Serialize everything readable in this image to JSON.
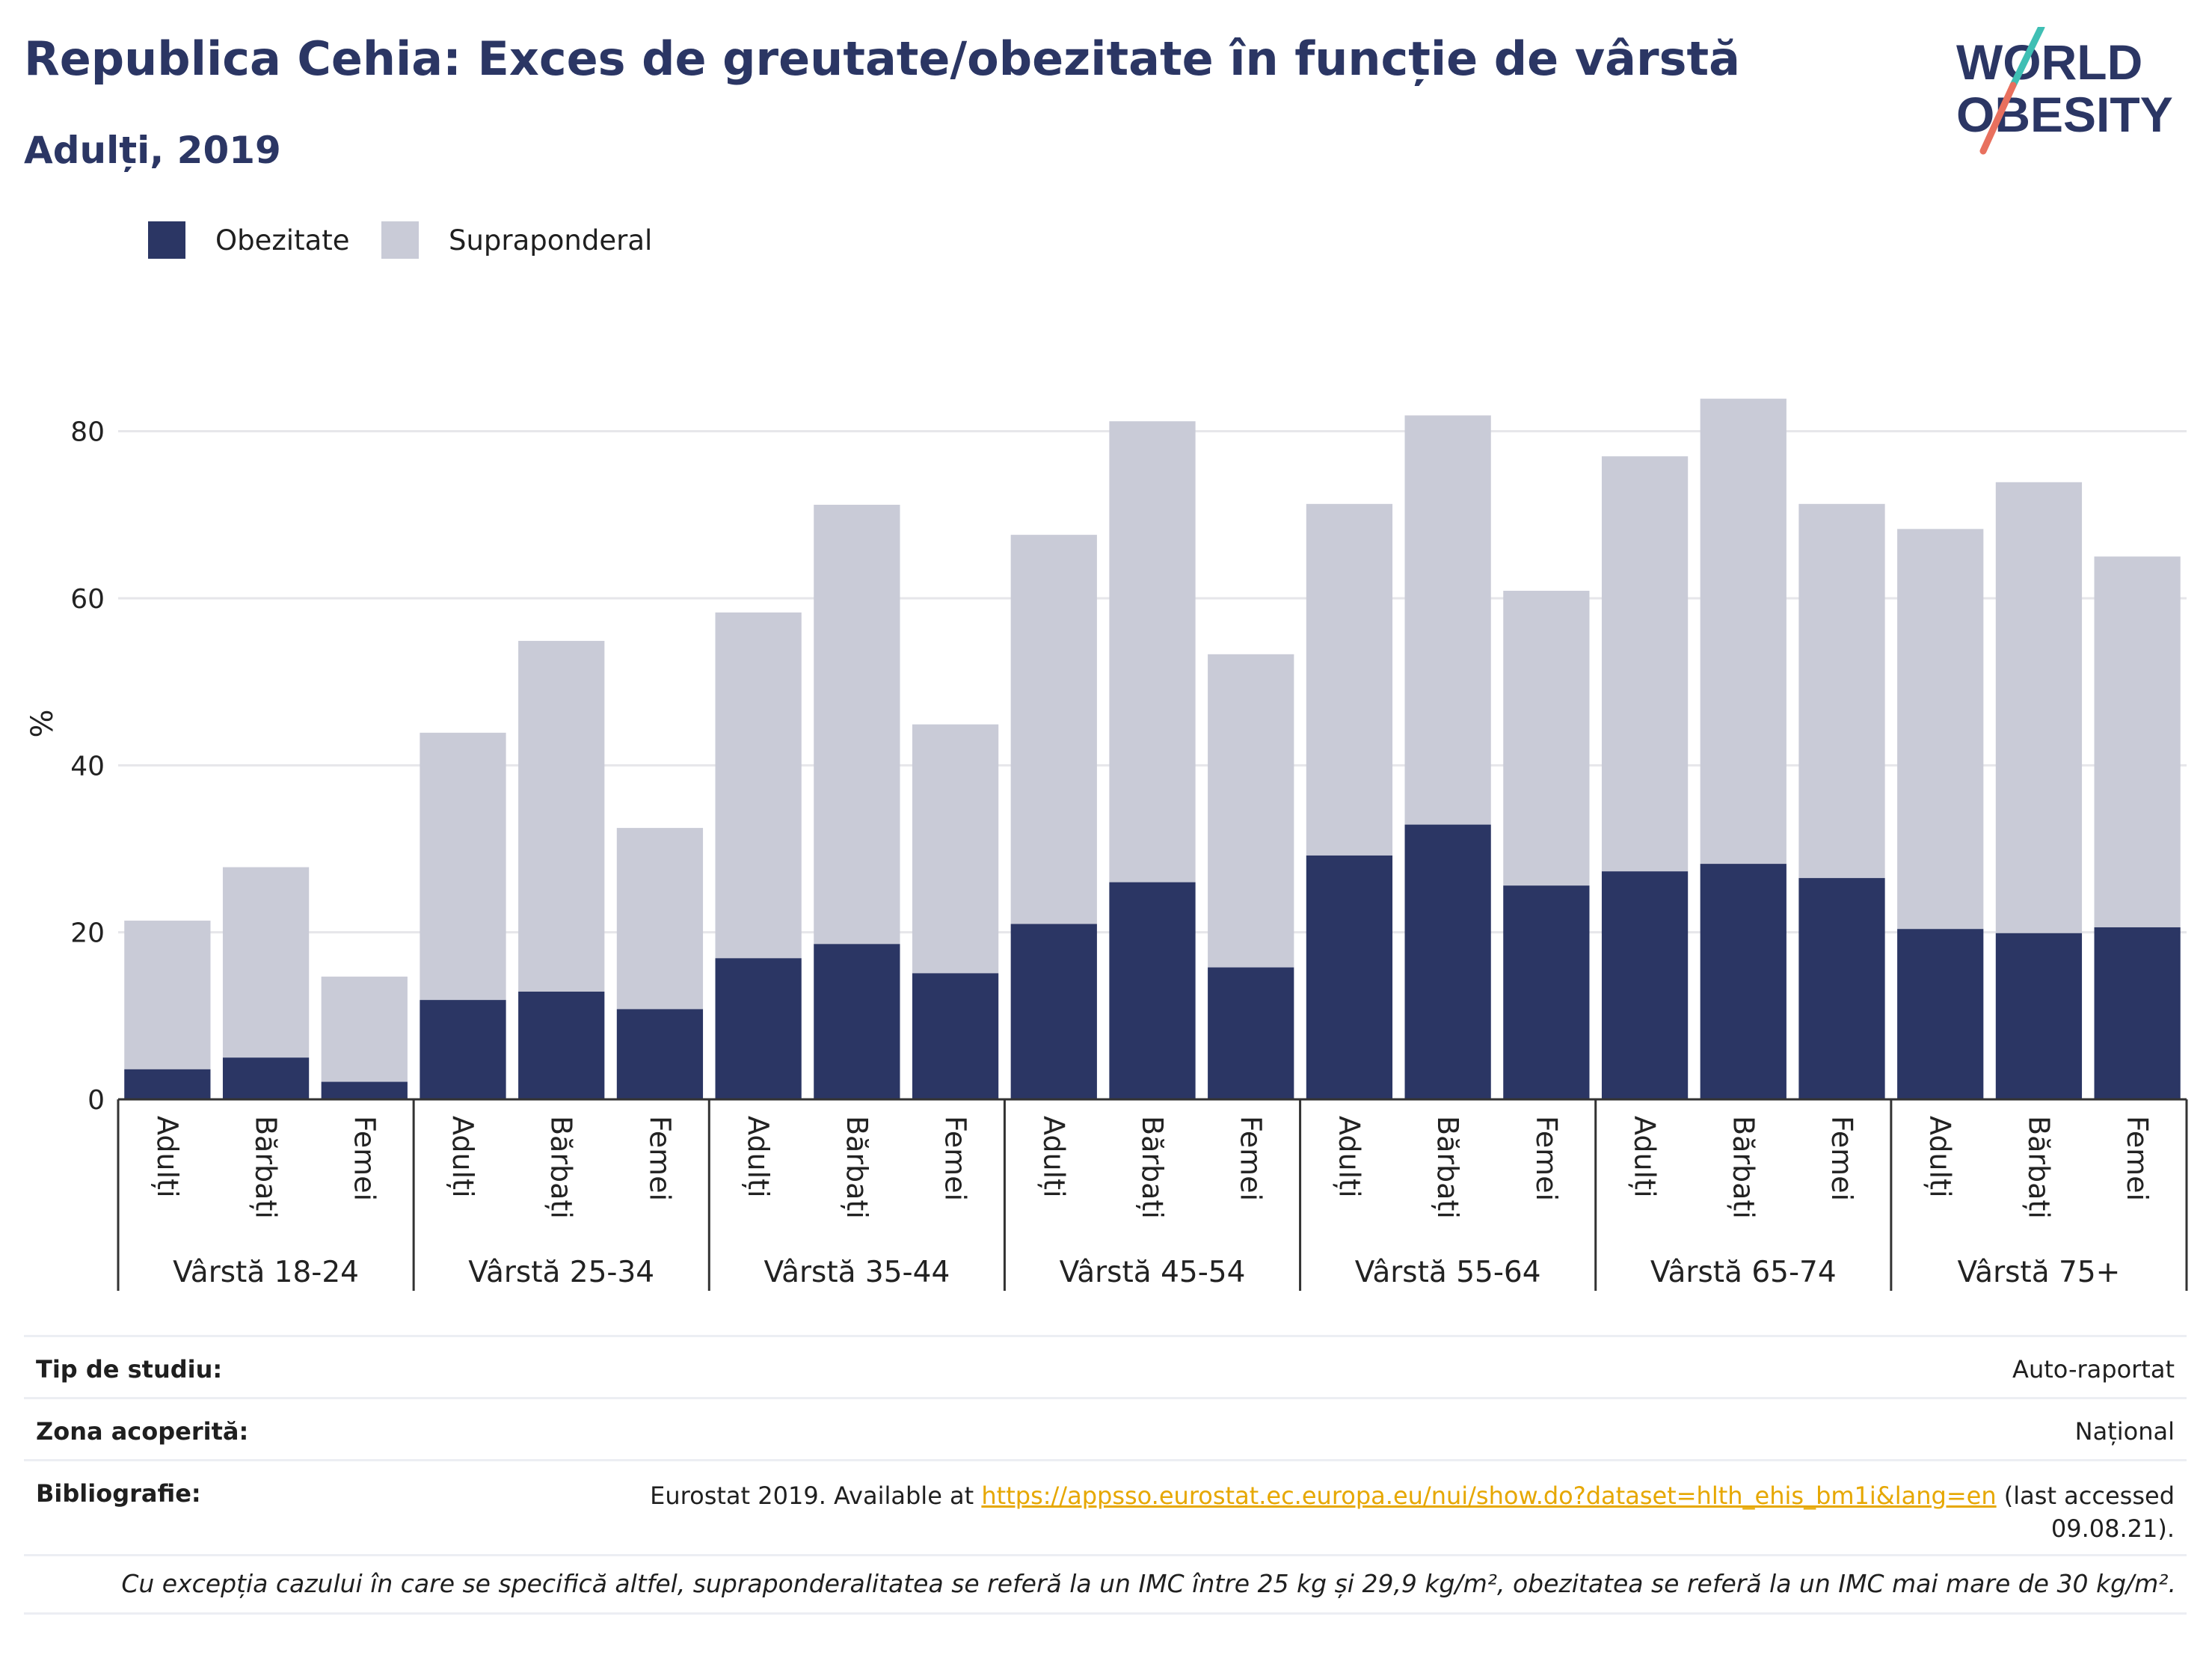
{
  "header": {
    "title": "Republica Cehia: Exces de greutate/obezitate în funcție de vârstă",
    "subtitle": "Adulți, 2019"
  },
  "logo": {
    "line1": "WORLD",
    "line2": "OBESITY",
    "color_text": "#2b3664",
    "color_slash_top": "#3fbfb4",
    "color_slash_bottom": "#e8705e"
  },
  "colors": {
    "obesity": "#2b3664",
    "overweight": "#c9cbd7",
    "grid": "#e6e6ea",
    "axis": "#333333"
  },
  "chart_data": {
    "type": "bar",
    "stacked": true,
    "ylabel": "%",
    "ylim": [
      0,
      90
    ],
    "yticks": [
      0,
      20,
      40,
      60,
      80
    ],
    "grid": true,
    "legend_position": "top-left",
    "groups": [
      "Vârstă 18-24",
      "Vârstă 25-34",
      "Vârstă 35-44",
      "Vârstă 45-54",
      "Vârstă 55-64",
      "Vârstă 65-74",
      "Vârstă 75+"
    ],
    "subcategories": [
      "Adulți",
      "Bărbați",
      "Femei"
    ],
    "series": [
      {
        "name": "Obezitate",
        "values": [
          3.6,
          5.0,
          2.1,
          11.9,
          12.9,
          10.8,
          16.9,
          18.6,
          15.1,
          21.0,
          26.0,
          15.8,
          29.2,
          32.9,
          25.6,
          27.3,
          28.2,
          26.5,
          20.4,
          19.9,
          20.6
        ]
      },
      {
        "name": "Supraponderal",
        "values": [
          17.8,
          22.8,
          12.6,
          32.0,
          42.0,
          21.7,
          41.4,
          52.6,
          29.8,
          46.6,
          55.2,
          37.5,
          42.1,
          49.0,
          35.3,
          49.7,
          55.7,
          44.8,
          47.9,
          54.0,
          44.4
        ]
      }
    ]
  },
  "meta": {
    "rows": [
      {
        "label": "Tip de studiu:",
        "value": "Auto-raportat"
      },
      {
        "label": "Zona acoperită:",
        "value": "Național"
      }
    ],
    "bibliography": {
      "label": "Bibliografie:",
      "prefix": "Eurostat 2019. Available at ",
      "link": "https://appsso.eurostat.ec.europa.eu/nui/show.do?dataset=hlth_ehis_bm1i&lang=en",
      "suffix_line1": " (last accessed",
      "suffix_line2": "09.08.21)."
    },
    "footnote": "Cu excepția cazului în care se specifică altfel, supraponderalitatea se referă la un IMC între 25 kg și 29,9 kg/m², obezitatea se referă la un IMC mai mare de 30 kg/m²."
  }
}
